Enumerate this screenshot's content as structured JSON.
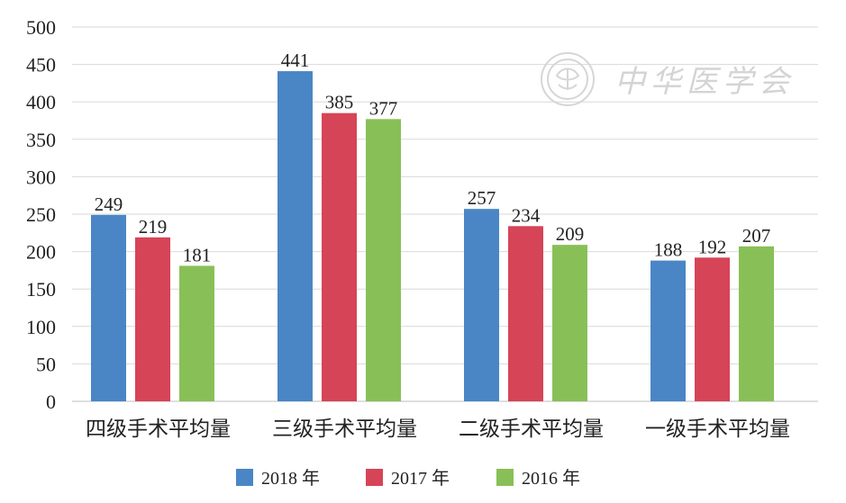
{
  "chart_data": {
    "type": "bar",
    "categories": [
      "四级手术平均量",
      "三级手术平均量",
      "二级手术平均量",
      "一级手术平均量"
    ],
    "series": [
      {
        "name": "2018 年",
        "color": "#4a86c5",
        "values": [
          249,
          441,
          257,
          188
        ]
      },
      {
        "name": "2017 年",
        "color": "#d64457",
        "values": [
          219,
          385,
          234,
          192
        ]
      },
      {
        "name": "2016 年",
        "color": "#88c057",
        "values": [
          181,
          377,
          209,
          207
        ]
      }
    ],
    "ylim": [
      0,
      500
    ],
    "yticks": [
      0,
      50,
      100,
      150,
      200,
      250,
      300,
      350,
      400,
      450,
      500
    ],
    "grid": true,
    "legend_position": "bottom"
  },
  "watermark": {
    "text": "中华医学会",
    "icon": "society-seal-icon",
    "color": "#d0d0d0"
  }
}
